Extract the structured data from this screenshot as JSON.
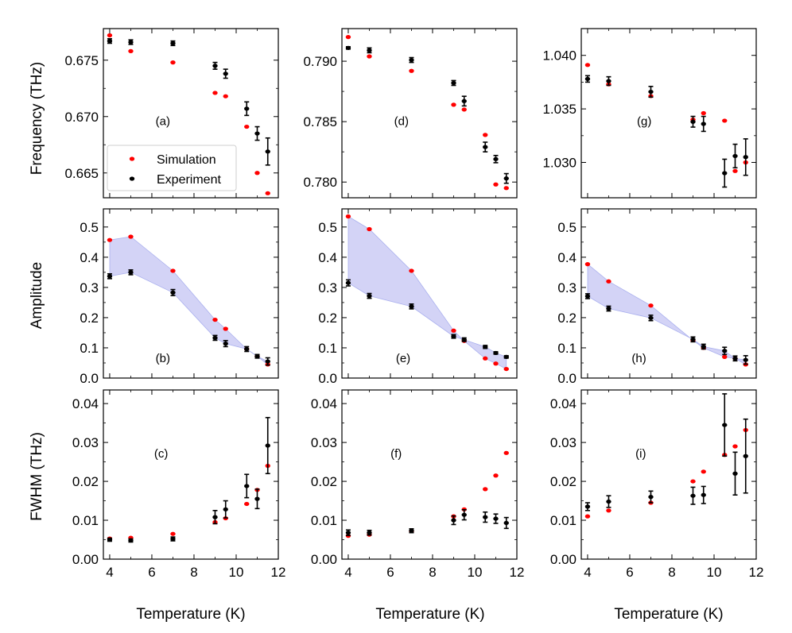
{
  "figure": {
    "x_axis_label": "Temperature (K)",
    "row_labels": [
      "Frequency (THz)",
      "Amplitude",
      "FWHM (THz)"
    ],
    "legend": {
      "position": "lower-left",
      "panel": "(a)",
      "entries": [
        "Simulation",
        "Experiment"
      ]
    },
    "colors": {
      "simulation": "#ff0000",
      "experiment": "#000000",
      "band": "#c8c8f4",
      "band_edge": "#aab0ee"
    },
    "x_ticks": [
      4,
      6,
      8,
      10,
      12
    ],
    "xlim": [
      3.7,
      12.0
    ]
  },
  "chart_data": [
    {
      "type": "scatter",
      "label": "(a)",
      "ylabel": "Frequency (THz)",
      "xlabel": "",
      "ylim": [
        0.6628,
        0.6778
      ],
      "yticks": [
        "0.665",
        "0.670",
        "0.675"
      ],
      "fill_between": false,
      "series": [
        {
          "name": "Simulation",
          "x": [
            4,
            5,
            7,
            9,
            9.5,
            10.5,
            11,
            11.5
          ],
          "y": [
            0.6772,
            0.6758,
            0.6748,
            0.6721,
            0.6718,
            0.6691,
            0.665,
            0.6632
          ],
          "err": [
            0,
            0,
            0,
            0,
            0,
            0,
            0,
            0
          ]
        },
        {
          "name": "Experiment",
          "x": [
            4,
            5,
            7,
            9,
            9.5,
            10.5,
            11,
            11.5
          ],
          "y": [
            0.6767,
            0.6766,
            0.6765,
            0.6745,
            0.6738,
            0.6707,
            0.6685,
            0.6669
          ],
          "err": [
            0.0002,
            0.0002,
            0.0002,
            0.0003,
            0.0004,
            0.0006,
            0.0006,
            0.0012
          ]
        }
      ]
    },
    {
      "type": "scatter",
      "label": "(d)",
      "ylabel": "",
      "xlabel": "",
      "ylim": [
        0.7787,
        0.7927
      ],
      "yticks": [
        "0.780",
        "0.785",
        "0.790"
      ],
      "fill_between": false,
      "series": [
        {
          "name": "Simulation",
          "x": [
            4,
            5,
            7,
            9,
            9.5,
            10.5,
            11,
            11.5
          ],
          "y": [
            0.792,
            0.7904,
            0.7892,
            0.7864,
            0.786,
            0.7839,
            0.7798,
            0.7795
          ],
          "err": [
            0,
            0,
            0,
            0,
            0,
            0,
            0,
            0
          ]
        },
        {
          "name": "Experiment",
          "x": [
            4,
            5,
            7,
            9,
            9.5,
            10.5,
            11,
            11.5
          ],
          "y": [
            0.7911,
            0.7909,
            0.7901,
            0.7882,
            0.7867,
            0.7829,
            0.7819,
            0.7803
          ],
          "err": [
            0.0001,
            0.0002,
            0.0002,
            0.0002,
            0.0004,
            0.0004,
            0.0003,
            0.0004
          ]
        }
      ]
    },
    {
      "type": "scatter",
      "label": "(g)",
      "ylabel": "",
      "xlabel": "",
      "ylim": [
        1.0267,
        1.0425
      ],
      "yticks": [
        "1.030",
        "1.035",
        "1.040"
      ],
      "fill_between": false,
      "series": [
        {
          "name": "Simulation",
          "x": [
            4,
            5,
            7,
            9,
            9.5,
            10.5,
            11,
            11.5
          ],
          "y": [
            1.0391,
            1.0373,
            1.0362,
            1.034,
            1.0346,
            1.0339,
            1.0292,
            1.03
          ],
          "err": [
            0,
            0,
            0,
            0,
            0,
            0,
            0,
            0
          ]
        },
        {
          "name": "Experiment",
          "x": [
            4,
            5,
            7,
            9,
            9.5,
            10.5,
            11,
            11.5
          ],
          "y": [
            1.0378,
            1.0376,
            1.0366,
            1.0338,
            1.0336,
            1.029,
            1.0306,
            1.0305
          ],
          "err": [
            0.0003,
            0.0004,
            0.0005,
            0.0005,
            0.0007,
            0.0013,
            0.0011,
            0.0017
          ]
        }
      ]
    },
    {
      "type": "scatter",
      "label": "(b)",
      "ylabel": "Amplitude",
      "xlabel": "",
      "ylim": [
        0,
        0.56
      ],
      "yticks": [
        "0.0",
        "0.1",
        "0.2",
        "0.3",
        "0.4",
        "0.5"
      ],
      "fill_between": true,
      "series": [
        {
          "name": "Simulation",
          "x": [
            4,
            5,
            7,
            9,
            9.5,
            10.5,
            11,
            11.5
          ],
          "y": [
            0.457,
            0.468,
            0.355,
            0.193,
            0.163,
            0.096,
            0.072,
            0.045
          ],
          "err": [
            0,
            0,
            0,
            0,
            0,
            0,
            0,
            0
          ]
        },
        {
          "name": "Experiment",
          "x": [
            4,
            5,
            7,
            9,
            9.5,
            10.5,
            11,
            11.5
          ],
          "y": [
            0.337,
            0.35,
            0.283,
            0.133,
            0.114,
            0.096,
            0.072,
            0.055
          ],
          "err": [
            0.008,
            0.008,
            0.01,
            0.008,
            0.01,
            0.008,
            0.006,
            0.012
          ]
        }
      ]
    },
    {
      "type": "scatter",
      "label": "(e)",
      "ylabel": "",
      "xlabel": "",
      "ylim": [
        0,
        0.56
      ],
      "yticks": [
        "0.0",
        "0.1",
        "0.2",
        "0.3",
        "0.4",
        "0.5"
      ],
      "fill_between": true,
      "series": [
        {
          "name": "Simulation",
          "x": [
            4,
            5,
            7,
            9,
            9.5,
            10.5,
            11,
            11.5
          ],
          "y": [
            0.535,
            0.493,
            0.355,
            0.157,
            0.123,
            0.065,
            0.048,
            0.03
          ],
          "err": [
            0,
            0,
            0,
            0,
            0,
            0,
            0,
            0
          ]
        },
        {
          "name": "Experiment",
          "x": [
            4,
            5,
            7,
            9,
            9.5,
            10.5,
            11,
            11.5
          ],
          "y": [
            0.315,
            0.272,
            0.237,
            0.138,
            0.127,
            0.103,
            0.083,
            0.07
          ],
          "err": [
            0.01,
            0.008,
            0.008,
            0.006,
            0.006,
            0.005,
            0.004,
            0.004
          ]
        }
      ]
    },
    {
      "type": "scatter",
      "label": "(h)",
      "ylabel": "",
      "xlabel": "",
      "ylim": [
        0,
        0.56
      ],
      "yticks": [
        "0.0",
        "0.1",
        "0.2",
        "0.3",
        "0.4",
        "0.5"
      ],
      "fill_between": true,
      "series": [
        {
          "name": "Simulation",
          "x": [
            4,
            5,
            7,
            9,
            9.5,
            10.5,
            11,
            11.5
          ],
          "y": [
            0.377,
            0.32,
            0.24,
            0.125,
            0.1,
            0.07,
            0.065,
            0.045
          ],
          "err": [
            0,
            0,
            0,
            0,
            0,
            0,
            0,
            0
          ]
        },
        {
          "name": "Experiment",
          "x": [
            4,
            5,
            7,
            9,
            9.5,
            10.5,
            11,
            11.5
          ],
          "y": [
            0.271,
            0.23,
            0.199,
            0.128,
            0.104,
            0.09,
            0.065,
            0.06
          ],
          "err": [
            0.008,
            0.008,
            0.009,
            0.008,
            0.008,
            0.012,
            0.008,
            0.014
          ]
        }
      ]
    },
    {
      "type": "scatter",
      "label": "(c)",
      "ylabel": "FWHM (THz)",
      "xlabel": "Temperature (K)",
      "ylim": [
        0,
        0.0435
      ],
      "yticks": [
        "0.00",
        "0.01",
        "0.02",
        "0.03",
        "0.04"
      ],
      "fill_between": false,
      "series": [
        {
          "name": "Simulation",
          "x": [
            4,
            5,
            7,
            9,
            9.5,
            10.5,
            11,
            11.5
          ],
          "y": [
            0.0053,
            0.0055,
            0.0065,
            0.0095,
            0.0105,
            0.0142,
            0.0178,
            0.024
          ],
          "err": [
            0,
            0,
            0,
            0,
            0,
            0,
            0,
            0
          ]
        },
        {
          "name": "Experiment",
          "x": [
            4,
            5,
            7,
            9,
            9.5,
            10.5,
            11,
            11.5
          ],
          "y": [
            0.005,
            0.0048,
            0.0052,
            0.0108,
            0.0128,
            0.0188,
            0.0155,
            0.0292
          ],
          "err": [
            0.0004,
            0.0004,
            0.0005,
            0.0017,
            0.0022,
            0.003,
            0.0025,
            0.0072
          ]
        }
      ]
    },
    {
      "type": "scatter",
      "label": "(f)",
      "ylabel": "",
      "xlabel": "Temperature (K)",
      "ylim": [
        0,
        0.0435
      ],
      "yticks": [
        "0.00",
        "0.01",
        "0.02",
        "0.03",
        "0.04"
      ],
      "fill_between": false,
      "series": [
        {
          "name": "Simulation",
          "x": [
            4,
            5,
            7,
            9,
            9.5,
            10.5,
            11,
            11.5
          ],
          "y": [
            0.006,
            0.0063,
            0.0072,
            0.011,
            0.0128,
            0.018,
            0.0215,
            0.0273
          ],
          "err": [
            0,
            0,
            0,
            0,
            0,
            0,
            0,
            0
          ]
        },
        {
          "name": "Experiment",
          "x": [
            4,
            5,
            7,
            9,
            9.5,
            10.5,
            11,
            11.5
          ],
          "y": [
            0.0068,
            0.0068,
            0.0073,
            0.01,
            0.0114,
            0.0108,
            0.0104,
            0.0093
          ],
          "err": [
            0.0007,
            0.0006,
            0.0005,
            0.0011,
            0.0013,
            0.0013,
            0.0012,
            0.0014
          ]
        }
      ]
    },
    {
      "type": "scatter",
      "label": "(i)",
      "ylabel": "",
      "xlabel": "Temperature (K)",
      "ylim": [
        0,
        0.0435
      ],
      "yticks": [
        "0.00",
        "0.01",
        "0.02",
        "0.03",
        "0.04"
      ],
      "fill_between": false,
      "series": [
        {
          "name": "Simulation",
          "x": [
            4,
            5,
            7,
            9,
            9.5,
            10.5,
            11,
            11.5
          ],
          "y": [
            0.011,
            0.0125,
            0.0145,
            0.02,
            0.0225,
            0.0268,
            0.029,
            0.0332
          ],
          "err": [
            0,
            0,
            0,
            0,
            0,
            0,
            0,
            0
          ]
        },
        {
          "name": "Experiment",
          "x": [
            4,
            5,
            7,
            9,
            9.5,
            10.5,
            11,
            11.5
          ],
          "y": [
            0.0135,
            0.0148,
            0.016,
            0.0163,
            0.0165,
            0.0345,
            0.022,
            0.0265
          ],
          "err": [
            0.001,
            0.0015,
            0.0015,
            0.0022,
            0.0022,
            0.008,
            0.0055,
            0.0095
          ]
        }
      ]
    }
  ]
}
